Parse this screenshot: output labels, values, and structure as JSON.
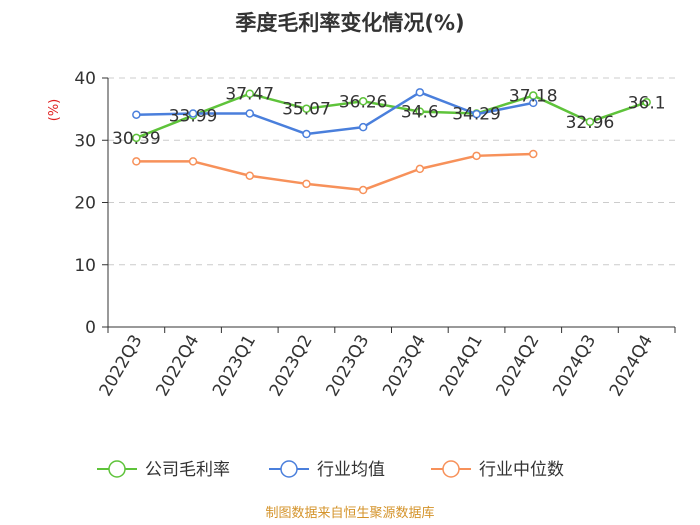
{
  "chart_data": {
    "type": "line",
    "title": "季度毛利率变化情况(%)",
    "ylabel": "(%)",
    "xlabel": "",
    "ylim": [
      0,
      40
    ],
    "yticks": [
      0,
      10,
      20,
      30,
      40
    ],
    "grid": true,
    "legend_position": "bottom",
    "categories": [
      "2022Q3",
      "2022Q4",
      "2023Q1",
      "2023Q2",
      "2023Q3",
      "2023Q4",
      "2024Q1",
      "2024Q2",
      "2024Q3",
      "2024Q4"
    ],
    "series": [
      {
        "name": "公司毛利率",
        "color": "#5ec33a",
        "values": [
          30.39,
          33.99,
          37.47,
          35.07,
          36.26,
          34.6,
          34.29,
          37.18,
          32.96,
          36.1
        ],
        "labels": [
          "30.39",
          "33.99",
          "37.47",
          "35.07",
          "36.26",
          "34.6",
          "34.29",
          "37.18",
          "32.96",
          "36.1"
        ]
      },
      {
        "name": "行业均值",
        "color": "#4a7fdc",
        "values": [
          34.1,
          34.3,
          34.3,
          31.0,
          32.1,
          37.7,
          34.2,
          36.0,
          null,
          null
        ]
      },
      {
        "name": "行业中位数",
        "color": "#f7915a",
        "values": [
          26.6,
          26.6,
          24.3,
          23.0,
          22.0,
          25.4,
          27.5,
          27.8,
          null,
          null
        ]
      }
    ]
  },
  "footer": {
    "source": "制图数据来自恒生聚源数据库"
  }
}
